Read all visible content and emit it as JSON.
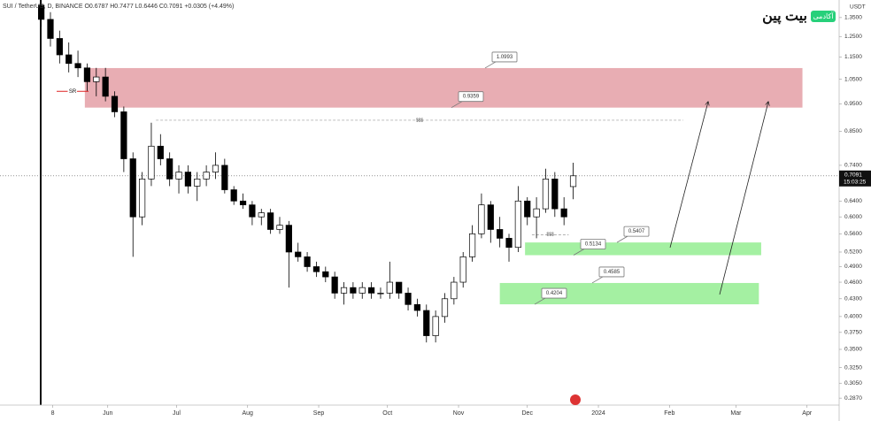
{
  "chart_data": {
    "type": "candlestick",
    "header": "SUI / TetherUS, D, BINANCE  O0.6787 H0.7477 L0.6446 C0.7091 +0.0305 (+4.49%)",
    "currency": "USDT",
    "brand": "بیت پین",
    "brand_tag": "آکادمی",
    "log_scale": true,
    "ylim": [
      0.279,
      1.45
    ],
    "yticks": [
      {
        "value": 1.35,
        "label": "1.3500"
      },
      {
        "value": 1.25,
        "label": "1.2500"
      },
      {
        "value": 1.15,
        "label": "1.1500"
      },
      {
        "value": 1.05,
        "label": "1.0500"
      },
      {
        "value": 0.95,
        "label": "0.9500"
      },
      {
        "value": 0.85,
        "label": "0.8500"
      },
      {
        "value": 0.74,
        "label": "0.7400"
      },
      {
        "value": 0.64,
        "label": "0.6400"
      },
      {
        "value": 0.6,
        "label": "0.6000"
      },
      {
        "value": 0.56,
        "label": "0.5600"
      },
      {
        "value": 0.52,
        "label": "0.5200"
      },
      {
        "value": 0.49,
        "label": "0.4900"
      },
      {
        "value": 0.46,
        "label": "0.4600"
      },
      {
        "value": 0.43,
        "label": "0.4300"
      },
      {
        "value": 0.4,
        "label": "0.4000"
      },
      {
        "value": 0.375,
        "label": "0.3750"
      },
      {
        "value": 0.35,
        "label": "0.3500"
      },
      {
        "value": 0.325,
        "label": "0.3250"
      },
      {
        "value": 0.305,
        "label": "0.3050"
      },
      {
        "value": 0.287,
        "label": "0.2870"
      }
    ],
    "xlim": [
      0,
      366
    ],
    "xticks": [
      {
        "value": 23,
        "label": "8"
      },
      {
        "value": 47,
        "label": "Jun"
      },
      {
        "value": 77,
        "label": "Jul"
      },
      {
        "value": 108,
        "label": "Aug"
      },
      {
        "value": 139,
        "label": "Sep"
      },
      {
        "value": 169,
        "label": "Oct"
      },
      {
        "value": 200,
        "label": "Nov"
      },
      {
        "value": 230,
        "label": "Dec"
      },
      {
        "value": 261,
        "label": "2024"
      },
      {
        "value": 292,
        "label": "Feb"
      },
      {
        "value": 321,
        "label": "Mar"
      },
      {
        "value": 352,
        "label": "Apr"
      }
    ],
    "last_price": 0.7091,
    "countdown": "15:03:25",
    "up_color": "#ffffff",
    "down_color": "#000000",
    "candles": [
      {
        "x": 18,
        "o": 1.42,
        "h": 1.46,
        "l": 1.3,
        "c": 1.34
      },
      {
        "x": 22,
        "o": 1.34,
        "h": 1.38,
        "l": 1.2,
        "c": 1.24
      },
      {
        "x": 26,
        "o": 1.24,
        "h": 1.28,
        "l": 1.12,
        "c": 1.16
      },
      {
        "x": 30,
        "o": 1.16,
        "h": 1.22,
        "l": 1.08,
        "c": 1.12
      },
      {
        "x": 34,
        "o": 1.12,
        "h": 1.18,
        "l": 1.06,
        "c": 1.1
      },
      {
        "x": 38,
        "o": 1.1,
        "h": 1.12,
        "l": 1.0,
        "c": 1.04
      },
      {
        "x": 42,
        "o": 1.04,
        "h": 1.1,
        "l": 0.98,
        "c": 1.06
      },
      {
        "x": 46,
        "o": 1.06,
        "h": 1.1,
        "l": 0.96,
        "c": 0.98
      },
      {
        "x": 50,
        "o": 0.98,
        "h": 1.0,
        "l": 0.9,
        "c": 0.92
      },
      {
        "x": 54,
        "o": 0.92,
        "h": 0.94,
        "l": 0.72,
        "c": 0.76
      },
      {
        "x": 58,
        "o": 0.76,
        "h": 0.78,
        "l": 0.51,
        "c": 0.6
      },
      {
        "x": 62,
        "o": 0.6,
        "h": 0.72,
        "l": 0.58,
        "c": 0.7
      },
      {
        "x": 66,
        "o": 0.7,
        "h": 0.88,
        "l": 0.68,
        "c": 0.8
      },
      {
        "x": 70,
        "o": 0.8,
        "h": 0.84,
        "l": 0.74,
        "c": 0.76
      },
      {
        "x": 74,
        "o": 0.76,
        "h": 0.78,
        "l": 0.68,
        "c": 0.7
      },
      {
        "x": 78,
        "o": 0.7,
        "h": 0.74,
        "l": 0.66,
        "c": 0.72
      },
      {
        "x": 82,
        "o": 0.72,
        "h": 0.74,
        "l": 0.66,
        "c": 0.68
      },
      {
        "x": 86,
        "o": 0.68,
        "h": 0.72,
        "l": 0.64,
        "c": 0.7
      },
      {
        "x": 90,
        "o": 0.7,
        "h": 0.74,
        "l": 0.68,
        "c": 0.72
      },
      {
        "x": 94,
        "o": 0.72,
        "h": 0.78,
        "l": 0.7,
        "c": 0.74
      },
      {
        "x": 98,
        "o": 0.74,
        "h": 0.76,
        "l": 0.66,
        "c": 0.67
      },
      {
        "x": 102,
        "o": 0.67,
        "h": 0.68,
        "l": 0.63,
        "c": 0.64
      },
      {
        "x": 106,
        "o": 0.64,
        "h": 0.66,
        "l": 0.62,
        "c": 0.63
      },
      {
        "x": 110,
        "o": 0.63,
        "h": 0.64,
        "l": 0.58,
        "c": 0.6
      },
      {
        "x": 114,
        "o": 0.6,
        "h": 0.62,
        "l": 0.58,
        "c": 0.61
      },
      {
        "x": 118,
        "o": 0.61,
        "h": 0.62,
        "l": 0.56,
        "c": 0.57
      },
      {
        "x": 122,
        "o": 0.57,
        "h": 0.6,
        "l": 0.56,
        "c": 0.58
      },
      {
        "x": 126,
        "o": 0.58,
        "h": 0.59,
        "l": 0.45,
        "c": 0.52
      },
      {
        "x": 130,
        "o": 0.52,
        "h": 0.54,
        "l": 0.5,
        "c": 0.51
      },
      {
        "x": 134,
        "o": 0.51,
        "h": 0.52,
        "l": 0.48,
        "c": 0.49
      },
      {
        "x": 138,
        "o": 0.49,
        "h": 0.5,
        "l": 0.47,
        "c": 0.48
      },
      {
        "x": 142,
        "o": 0.48,
        "h": 0.49,
        "l": 0.46,
        "c": 0.47
      },
      {
        "x": 146,
        "o": 0.47,
        "h": 0.48,
        "l": 0.43,
        "c": 0.44
      },
      {
        "x": 150,
        "o": 0.44,
        "h": 0.46,
        "l": 0.42,
        "c": 0.45
      },
      {
        "x": 154,
        "o": 0.45,
        "h": 0.46,
        "l": 0.43,
        "c": 0.44
      },
      {
        "x": 158,
        "o": 0.44,
        "h": 0.46,
        "l": 0.43,
        "c": 0.45
      },
      {
        "x": 162,
        "o": 0.45,
        "h": 0.46,
        "l": 0.43,
        "c": 0.44
      },
      {
        "x": 166,
        "o": 0.44,
        "h": 0.45,
        "l": 0.43,
        "c": 0.44
      },
      {
        "x": 170,
        "o": 0.44,
        "h": 0.5,
        "l": 0.43,
        "c": 0.46
      },
      {
        "x": 174,
        "o": 0.46,
        "h": 0.46,
        "l": 0.43,
        "c": 0.44
      },
      {
        "x": 178,
        "o": 0.44,
        "h": 0.45,
        "l": 0.41,
        "c": 0.42
      },
      {
        "x": 182,
        "o": 0.42,
        "h": 0.43,
        "l": 0.4,
        "c": 0.41
      },
      {
        "x": 186,
        "o": 0.41,
        "h": 0.42,
        "l": 0.36,
        "c": 0.37
      },
      {
        "x": 190,
        "o": 0.37,
        "h": 0.41,
        "l": 0.36,
        "c": 0.4
      },
      {
        "x": 194,
        "o": 0.4,
        "h": 0.44,
        "l": 0.39,
        "c": 0.43
      },
      {
        "x": 198,
        "o": 0.43,
        "h": 0.47,
        "l": 0.42,
        "c": 0.46
      },
      {
        "x": 202,
        "o": 0.46,
        "h": 0.52,
        "l": 0.45,
        "c": 0.51
      },
      {
        "x": 206,
        "o": 0.51,
        "h": 0.58,
        "l": 0.5,
        "c": 0.56
      },
      {
        "x": 210,
        "o": 0.56,
        "h": 0.66,
        "l": 0.55,
        "c": 0.63
      },
      {
        "x": 214,
        "o": 0.63,
        "h": 0.64,
        "l": 0.54,
        "c": 0.57
      },
      {
        "x": 218,
        "o": 0.57,
        "h": 0.6,
        "l": 0.53,
        "c": 0.55
      },
      {
        "x": 222,
        "o": 0.55,
        "h": 0.56,
        "l": 0.5,
        "c": 0.53
      },
      {
        "x": 226,
        "o": 0.53,
        "h": 0.68,
        "l": 0.52,
        "c": 0.64
      },
      {
        "x": 230,
        "o": 0.64,
        "h": 0.65,
        "l": 0.58,
        "c": 0.6
      },
      {
        "x": 234,
        "o": 0.6,
        "h": 0.65,
        "l": 0.55,
        "c": 0.62
      },
      {
        "x": 238,
        "o": 0.62,
        "h": 0.73,
        "l": 0.61,
        "c": 0.7
      },
      {
        "x": 242,
        "o": 0.7,
        "h": 0.72,
        "l": 0.6,
        "c": 0.62
      },
      {
        "x": 246,
        "o": 0.62,
        "h": 0.65,
        "l": 0.58,
        "c": 0.6
      },
      {
        "x": 250,
        "o": 0.6787,
        "h": 0.7477,
        "l": 0.6446,
        "c": 0.7091
      }
    ],
    "zones": [
      {
        "low": 0.9359,
        "high": 1.0993,
        "x0": 37,
        "x1": 350,
        "color": "#e8adb3"
      },
      {
        "low": 0.5134,
        "high": 0.5407,
        "x0": 229,
        "x1": 332,
        "color": "#a4f0a2"
      },
      {
        "low": 0.4204,
        "high": 0.4585,
        "x0": 218,
        "x1": 331,
        "color": "#a4f0a2"
      }
    ],
    "liquidity": [
      {
        "value": 0.889,
        "x0": 68,
        "x1": 298,
        "label": "$$$"
      },
      {
        "value": 0.558,
        "x0": 232,
        "x1": 248,
        "label": "$$$"
      }
    ],
    "sr": {
      "value": 1.0,
      "label": "SR"
    }
  }
}
